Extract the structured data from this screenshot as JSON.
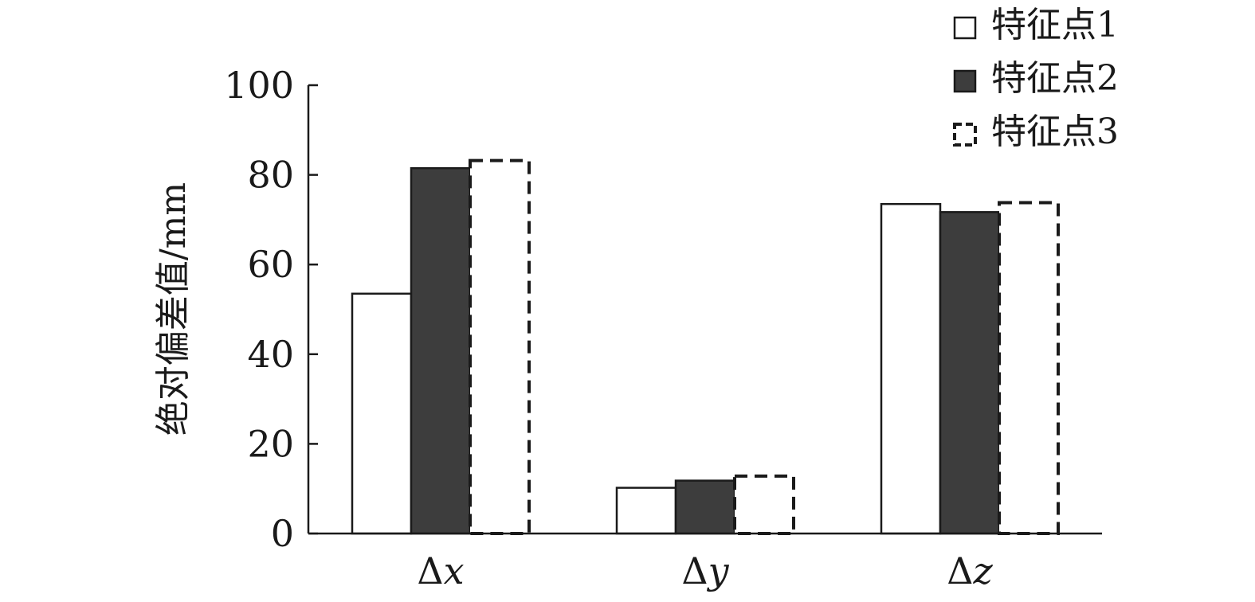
{
  "chart_data": {
    "type": "bar",
    "title": "",
    "xlabel": "",
    "ylabel": "绝对偏差值/mm",
    "categories": [
      "Δx",
      "Δy",
      "Δz"
    ],
    "series": [
      {
        "name": "特征点1",
        "values": [
          53.5,
          10.2,
          73.5
        ],
        "style": "outline",
        "color": "#ffffff"
      },
      {
        "name": "特征点2",
        "values": [
          81.5,
          11.8,
          71.7
        ],
        "style": "filled",
        "color": "#3d3d3d"
      },
      {
        "name": "特征点3",
        "values": [
          83.2,
          12.8,
          73.8
        ],
        "style": "dashed",
        "color": "#ffffff"
      }
    ],
    "ylim": [
      0,
      100
    ],
    "yticks": [
      0,
      20,
      40,
      60,
      80,
      100
    ],
    "grid": false,
    "legend_position": "top-right"
  }
}
